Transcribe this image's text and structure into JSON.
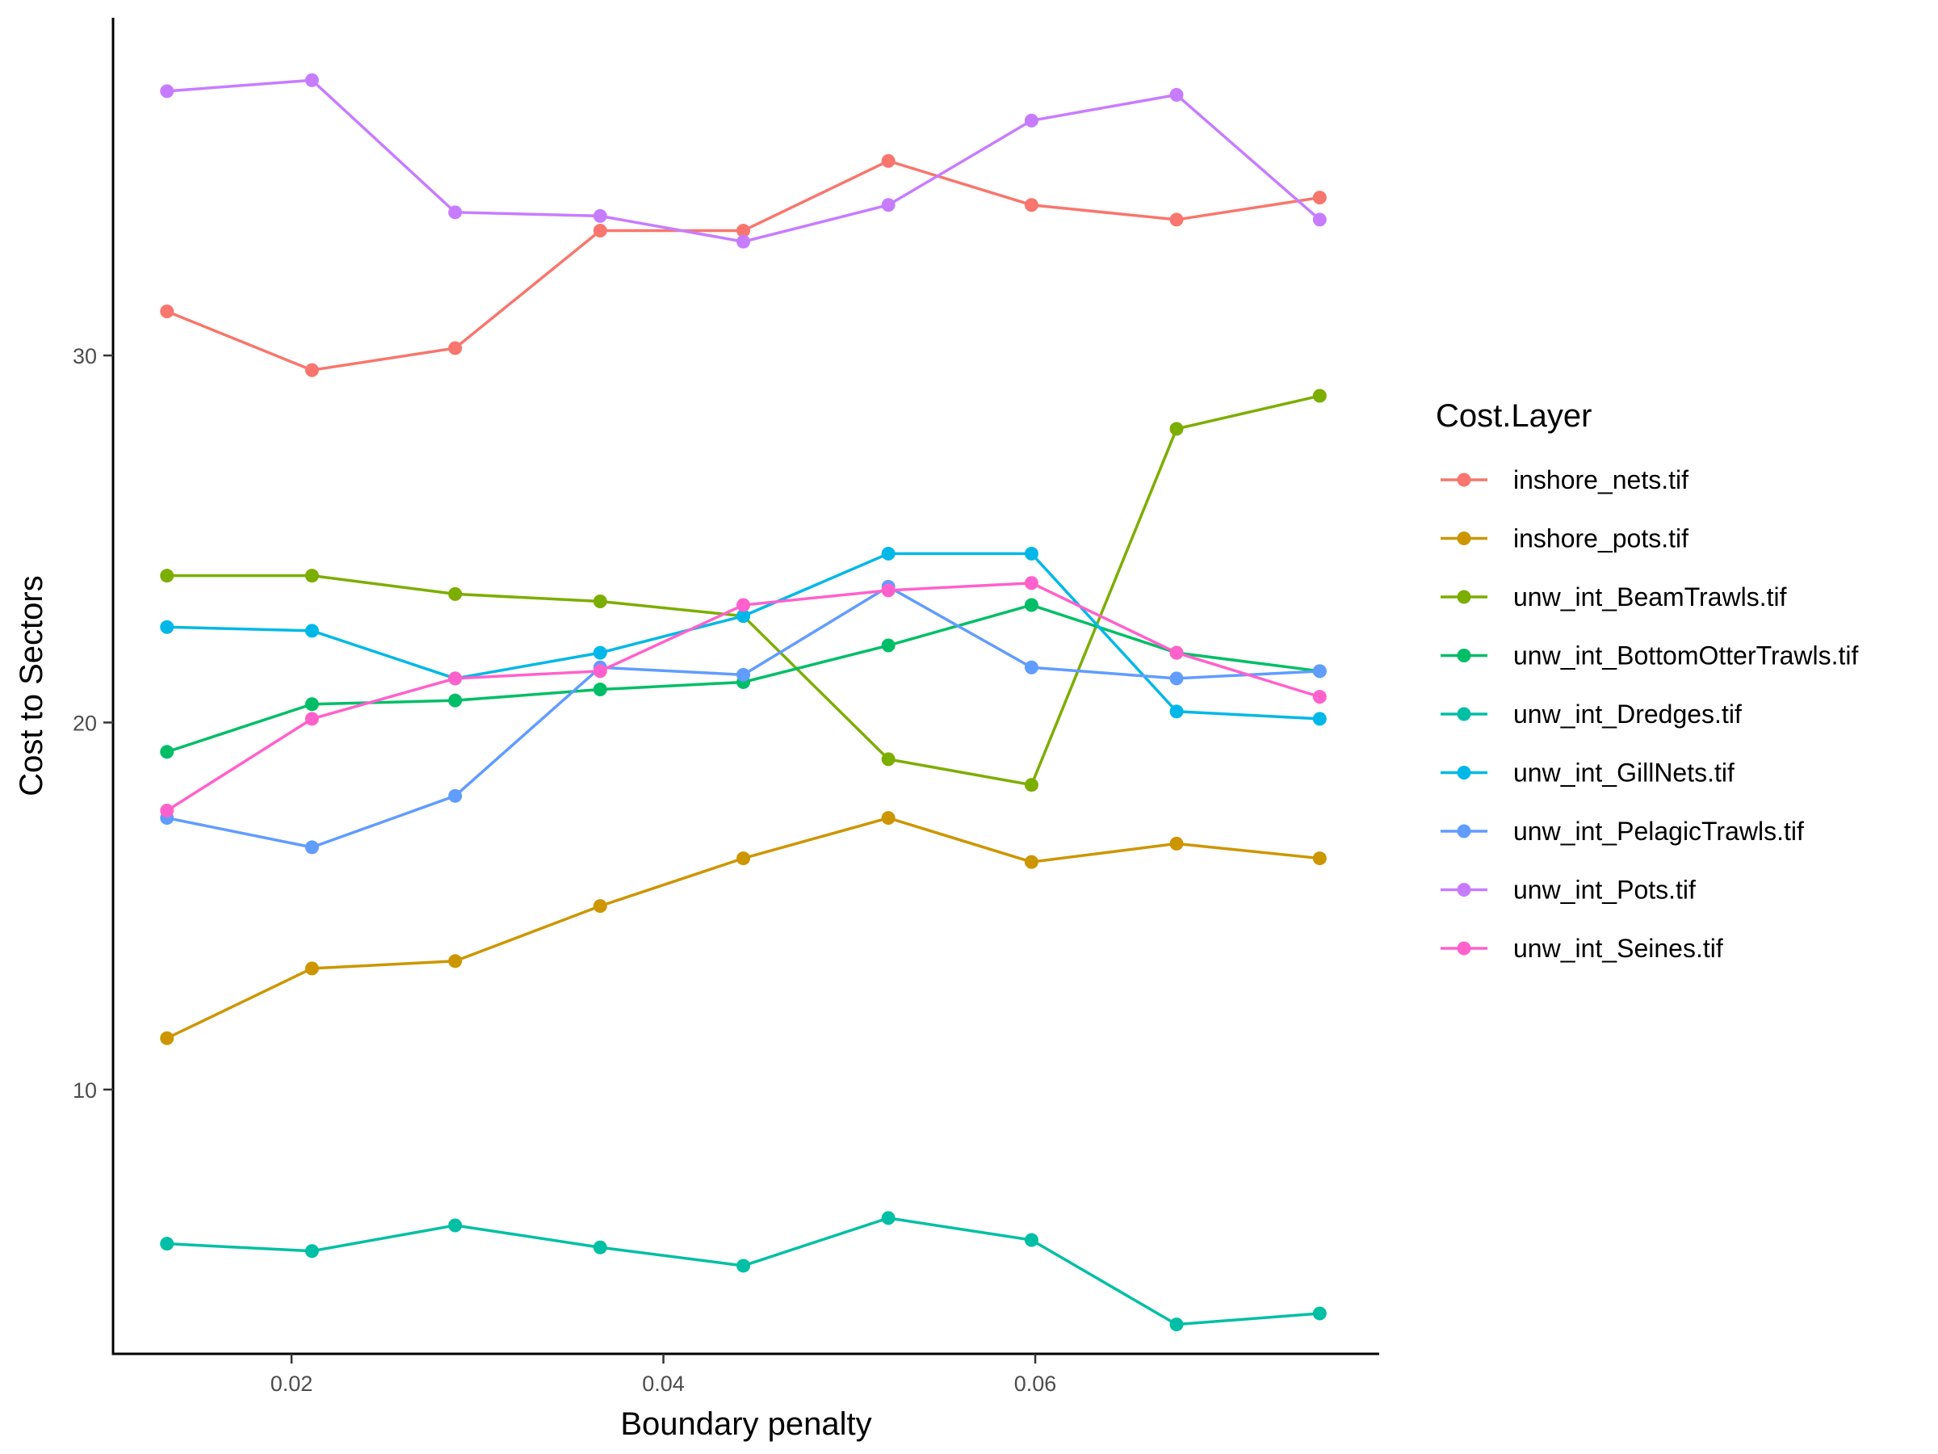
{
  "chart_data": {
    "type": "line",
    "xlabel": "Boundary penalty",
    "ylabel": "Cost to Sectors",
    "xlim": [
      0.0104,
      0.0785
    ],
    "ylim": [
      2.8,
      39.2
    ],
    "x_ticks": [
      0.02,
      0.04,
      0.06
    ],
    "x_tick_labels": [
      "0.02",
      "0.04",
      "0.06"
    ],
    "y_ticks": [
      10,
      20,
      30
    ],
    "y_tick_labels": [
      "10",
      "20",
      "30"
    ],
    "grid": false,
    "legend": {
      "title": "Cost.Layer",
      "position": "right"
    },
    "x": [
      0.0133,
      0.0211,
      0.0288,
      0.0366,
      0.0443,
      0.0521,
      0.0598,
      0.0676,
      0.0753
    ],
    "series": [
      {
        "name": "inshore_nets.tif",
        "color": "#F8766D",
        "values": [
          31.2,
          29.6,
          30.2,
          33.4,
          33.4,
          35.3,
          34.1,
          33.7,
          34.3
        ]
      },
      {
        "name": "inshore_pots.tif",
        "color": "#CD9600",
        "values": [
          11.4,
          13.3,
          13.5,
          15.0,
          16.3,
          17.4,
          16.2,
          16.7,
          16.3
        ]
      },
      {
        "name": "unw_int_BeamTrawls.tif",
        "color": "#7CAE00",
        "values": [
          24.0,
          24.0,
          23.5,
          23.3,
          22.9,
          19.0,
          18.3,
          28.0,
          28.9
        ]
      },
      {
        "name": "unw_int_BottomOtterTrawls.tif",
        "color": "#00BE67",
        "values": [
          19.2,
          20.5,
          20.6,
          20.9,
          21.1,
          22.1,
          23.2,
          21.9,
          21.4
        ]
      },
      {
        "name": "unw_int_Dredges.tif",
        "color": "#00BFA5",
        "values": [
          5.8,
          5.6,
          6.3,
          5.7,
          5.2,
          6.5,
          5.9,
          3.6,
          3.9
        ]
      },
      {
        "name": "unw_int_GillNets.tif",
        "color": "#00B8E7",
        "values": [
          22.6,
          22.5,
          21.2,
          21.9,
          22.9,
          24.6,
          24.6,
          20.3,
          20.1
        ]
      },
      {
        "name": "unw_int_PelagicTrawls.tif",
        "color": "#619CFF",
        "values": [
          17.4,
          16.6,
          18.0,
          21.5,
          21.3,
          23.7,
          21.5,
          21.2,
          21.4
        ]
      },
      {
        "name": "unw_int_Pots.tif",
        "color": "#C77CFF",
        "values": [
          37.2,
          37.5,
          33.9,
          33.8,
          33.1,
          34.1,
          36.4,
          37.1,
          33.7
        ]
      },
      {
        "name": "unw_int_Seines.tif",
        "color": "#FF61CC",
        "values": [
          17.6,
          20.1,
          21.2,
          21.4,
          23.2,
          23.6,
          23.8,
          21.9,
          20.7
        ]
      }
    ]
  }
}
